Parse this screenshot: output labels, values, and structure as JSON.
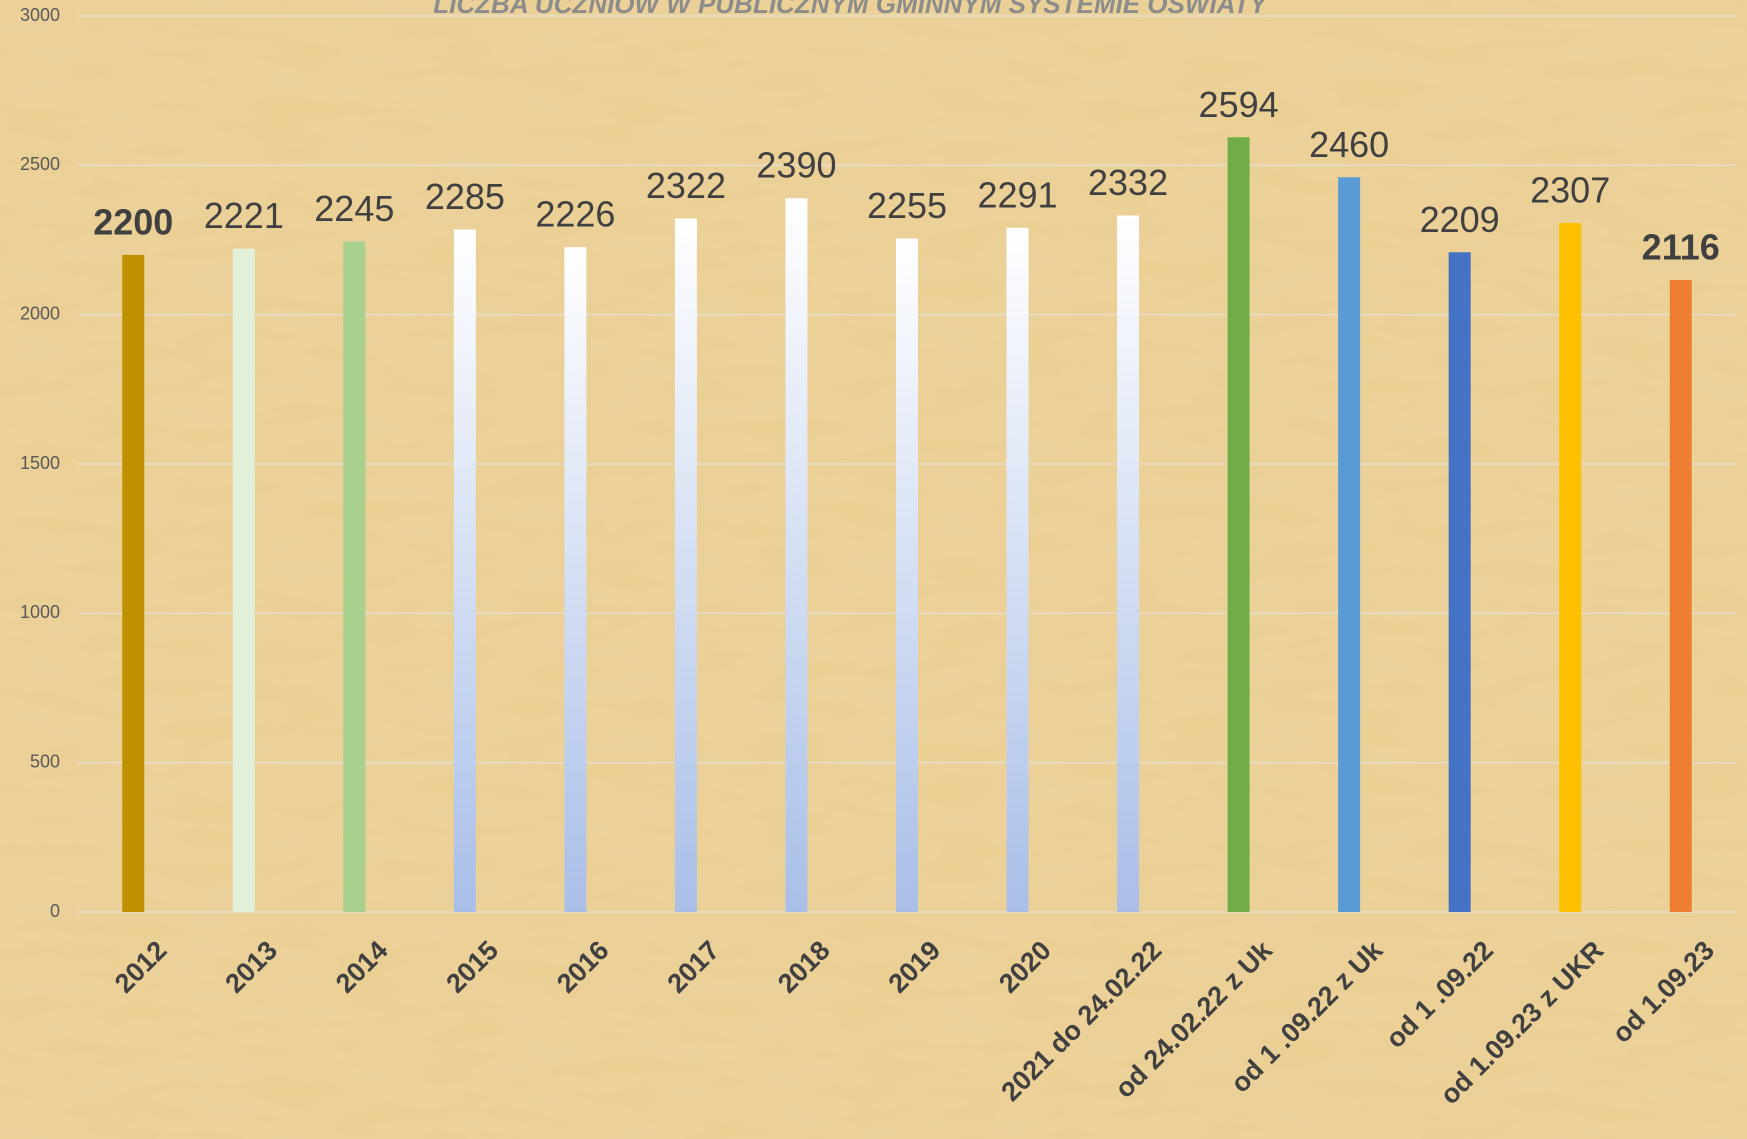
{
  "chart_data": {
    "type": "bar",
    "title": "LICZBA UCZNIÓW W PUBLICZNYM GMINNYM SYSTEMIE OŚWIATY",
    "categories": [
      "2012",
      "2013",
      "2014",
      "2015",
      "2016",
      "2017",
      "2018",
      "2019",
      "2020",
      "2021 do 24.02.22",
      "od 24.02.22 z Uk",
      "od 1 .09.22 z Uk",
      "od 1 .09.22",
      "od 1.09.23 z UKR",
      "od 1.09.23"
    ],
    "values": [
      2200,
      2221,
      2245,
      2285,
      2226,
      2322,
      2390,
      2255,
      2291,
      2332,
      2594,
      2460,
      2209,
      2307,
      2116
    ],
    "colors": [
      "#bf9000",
      "#e2efd9",
      "#a9d18e",
      [
        "#ffffff",
        "#a9bfe8"
      ],
      [
        "#ffffff",
        "#a9bfe8"
      ],
      [
        "#ffffff",
        "#a9bfe8"
      ],
      [
        "#ffffff",
        "#a9bfe8"
      ],
      [
        "#ffffff",
        "#a9bfe8"
      ],
      [
        "#ffffff",
        "#a9bfe8"
      ],
      [
        "#ffffff",
        "#a9bfe8"
      ],
      "#70ad47",
      "#5b9bd5",
      "#4472c4",
      "#ffc000",
      "#ed7d31"
    ],
    "bold_labels": [
      0,
      14
    ],
    "ylim": [
      0,
      3000
    ],
    "yticks": [
      0,
      500,
      1000,
      1500,
      2000,
      2500,
      3000
    ],
    "grid": true
  }
}
